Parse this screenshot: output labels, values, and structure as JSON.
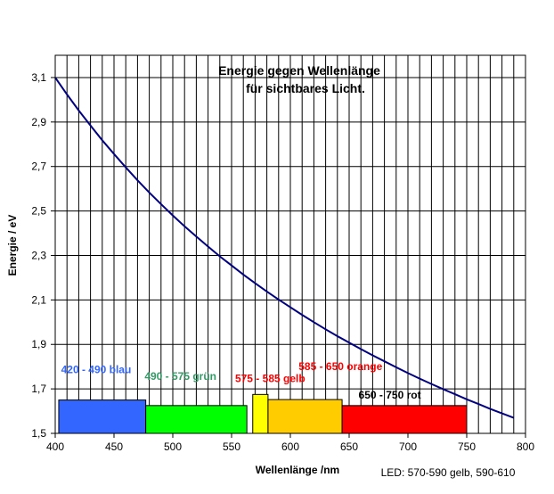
{
  "chart_data": {
    "type": "line",
    "title_lines": [
      "Energie gegen Wellenlänge",
      "für sichtbares Licht."
    ],
    "xlabel": "Wellenlänge /nm",
    "ylabel": "Energie / eV",
    "xlim": [
      400,
      800
    ],
    "ylim": [
      1.5,
      3.2
    ],
    "x_ticks": [
      400,
      450,
      500,
      550,
      600,
      650,
      700,
      750,
      800
    ],
    "x_tick_labels": [
      "400",
      "450",
      "500",
      "550",
      "600",
      "650",
      "700",
      "750",
      "800"
    ],
    "y_ticks": [
      1.5,
      1.7,
      1.9,
      2.1,
      2.3,
      2.5,
      2.7,
      2.9,
      3.1
    ],
    "y_tick_labels": [
      "1,5",
      "1,7",
      "1,9",
      "2,1",
      "2,3",
      "2,5",
      "2,7",
      "2,9",
      "3,1"
    ],
    "x_minor_step": 10,
    "grid": true,
    "series": [
      {
        "color": "#000080",
        "x": [
          400,
          410,
          420,
          430,
          440,
          450,
          460,
          470,
          480,
          490,
          500,
          510,
          520,
          530,
          540,
          550,
          560,
          570,
          580,
          590,
          600,
          610,
          620,
          630,
          640,
          650,
          660,
          670,
          680,
          690,
          700,
          710,
          720,
          730,
          740,
          750,
          760,
          770,
          780,
          790
        ],
        "y": [
          3.1,
          3.024,
          2.952,
          2.884,
          2.818,
          2.756,
          2.696,
          2.638,
          2.583,
          2.531,
          2.48,
          2.431,
          2.385,
          2.34,
          2.296,
          2.255,
          2.214,
          2.175,
          2.138,
          2.102,
          2.067,
          2.033,
          2.0,
          1.968,
          1.937,
          1.908,
          1.879,
          1.851,
          1.824,
          1.797,
          1.771,
          1.746,
          1.722,
          1.699,
          1.676,
          1.653,
          1.632,
          1.61,
          1.59,
          1.57
        ]
      }
    ],
    "bands": [
      {
        "label": "420 - 490 blau",
        "x0": 403,
        "x1": 477,
        "ytop": 1.65,
        "color": "#3366FF",
        "text_color": "#3366FF",
        "label_x": 405,
        "label_y": 1.77
      },
      {
        "label": "490 - 575 grün",
        "x0": 477,
        "x1": 563,
        "ytop": 1.625,
        "color": "#00FF00",
        "text_color": "#339966",
        "label_x": 476,
        "label_y": 1.74
      },
      {
        "label": "575 - 585 gelb",
        "x0": 568,
        "x1": 581,
        "ytop": 1.675,
        "color": "#FFFF00",
        "text_color": "#FF0000",
        "label_x": 553,
        "label_y": 1.73
      },
      {
        "label": "585 - 650 orange",
        "x0": 581,
        "x1": 644,
        "ytop": 1.652,
        "color": "#FFCC00",
        "text_color": "#FF0000",
        "label_x": 607,
        "label_y": 1.785
      },
      {
        "label": "650 - 750 rot",
        "x0": 644,
        "x1": 750,
        "ytop": 1.625,
        "color": "#FF0000",
        "text_color": "#000000",
        "label_x": 658,
        "label_y": 1.657
      }
    ],
    "footnote": "LED: 570-590 gelb, 590-610"
  }
}
